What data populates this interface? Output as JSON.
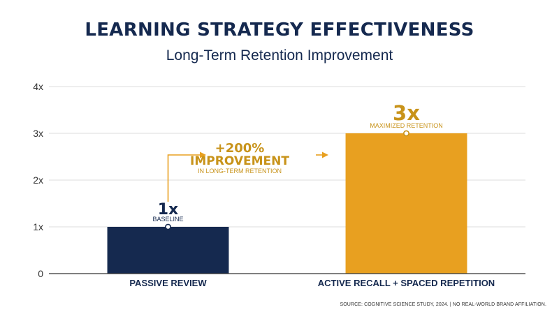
{
  "chart_data": {
    "type": "bar",
    "title": "LEARNING STRATEGY EFFECTIVENESS",
    "subtitle": "Long-Term Retention Improvement",
    "categories": [
      "PASSIVE REVIEW",
      "ACTIVE RECALL + SPACED REPETITION"
    ],
    "values": [
      1,
      3
    ],
    "ylim": [
      0,
      4
    ],
    "yticks": [
      0,
      1,
      2,
      3,
      4
    ],
    "ytick_labels": [
      "0",
      "1x",
      "2x",
      "3x",
      "4x"
    ],
    "grid": true,
    "bar_colors": [
      "#15294f",
      "#e8a020"
    ],
    "value_labels": [
      "1x",
      "3x"
    ],
    "bar_sublabels": [
      "BASELINE",
      "MAXIMIZED RETENTION"
    ],
    "annotation": {
      "line1": "+200%",
      "line2": "IMPROVEMENT",
      "line3": "IN LONG-TERM RETENTION",
      "color": "#c8931a"
    }
  },
  "source": "SOURCE: COGNITIVE SCIENCE STUDY, 2024. | NO REAL-WORLD BRAND AFFILIATION."
}
